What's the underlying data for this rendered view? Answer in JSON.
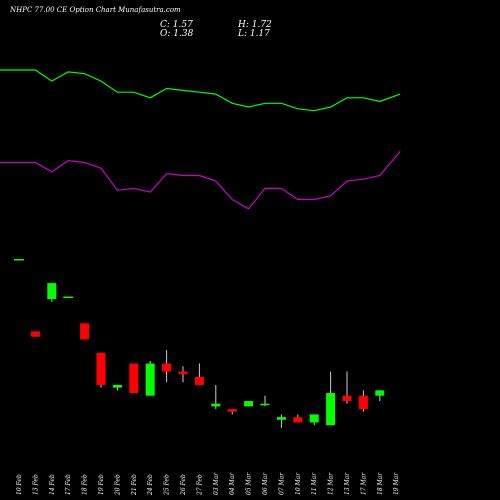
{
  "title": "NHPC 77.00  CE Option  Chart Munafasutra.com",
  "ohlc": {
    "c": "C: 1.57",
    "h": "H: 1.72",
    "o": "O: 1.38",
    "l": "L: 1.17"
  },
  "colors": {
    "up": "#00ff00",
    "down": "#ff0000",
    "line1": "#00ff00",
    "line2": "#cc00cc",
    "background": "#000000"
  },
  "chart_data": {
    "type": "candlestick",
    "title": "NHPC 77.00  CE Option  Chart Munafasutra.com",
    "categories": [
      "10 Feb",
      "13 Feb",
      "14 Feb",
      "17 Feb",
      "18 Feb",
      "19 Feb",
      "20 Feb",
      "21 Feb",
      "24 Feb",
      "25 Feb",
      "26 Feb",
      "27 Feb",
      "03 Mar",
      "04 Mar",
      "05 Mar",
      "06 Mar",
      "07 Mar",
      "10 Mar",
      "11 Mar",
      "12 Mar",
      "13 Mar",
      "17 Mar",
      "18 Mar",
      "19 Mar"
    ],
    "candles": [
      {
        "o": 2.28,
        "h": 2.28,
        "l": 2.28,
        "c": 2.28
      },
      {
        "o": 2.01,
        "h": 2.01,
        "l": 1.99,
        "c": 1.99
      },
      {
        "o": 2.13,
        "h": 2.19,
        "l": 2.12,
        "c": 2.19
      },
      {
        "o": 2.14,
        "h": 2.14,
        "l": 2.14,
        "c": 2.14
      },
      {
        "o": 2.04,
        "h": 2.04,
        "l": 1.98,
        "c": 1.98
      },
      {
        "o": 1.93,
        "h": 1.93,
        "l": 1.8,
        "c": 1.81
      },
      {
        "o": 1.8,
        "h": 1.81,
        "l": 1.79,
        "c": 1.81
      },
      {
        "o": 1.89,
        "h": 1.89,
        "l": 1.78,
        "c": 1.78
      },
      {
        "o": 1.77,
        "h": 1.9,
        "l": 1.77,
        "c": 1.89
      },
      {
        "o": 1.89,
        "h": 1.94,
        "l": 1.82,
        "c": 1.86
      },
      {
        "o": 1.86,
        "h": 1.88,
        "l": 1.82,
        "c": 1.85
      },
      {
        "o": 1.84,
        "h": 1.89,
        "l": 1.81,
        "c": 1.81
      },
      {
        "o": 1.73,
        "h": 1.81,
        "l": 1.72,
        "c": 1.74
      },
      {
        "o": 1.72,
        "h": 1.72,
        "l": 1.7,
        "c": 1.71
      },
      {
        "o": 1.73,
        "h": 1.75,
        "l": 1.73,
        "c": 1.75
      },
      {
        "o": 1.74,
        "h": 1.77,
        "l": 1.73,
        "c": 1.74
      },
      {
        "o": 1.68,
        "h": 1.7,
        "l": 1.65,
        "c": 1.69
      },
      {
        "o": 1.69,
        "h": 1.7,
        "l": 1.67,
        "c": 1.67
      },
      {
        "o": 1.67,
        "h": 1.7,
        "l": 1.66,
        "c": 1.7
      },
      {
        "o": 1.66,
        "h": 1.86,
        "l": 1.66,
        "c": 1.78
      },
      {
        "o": 1.77,
        "h": 1.86,
        "l": 1.74,
        "c": 1.75
      },
      {
        "o": 1.77,
        "h": 1.79,
        "l": 1.71,
        "c": 1.72
      },
      {
        "o": 1.77,
        "h": 1.79,
        "l": 1.75,
        "c": 1.79
      },
      {
        "o": null,
        "h": null,
        "l": null,
        "c": null
      }
    ],
    "series": [
      {
        "values": [
          1.57,
          1.57,
          1.51,
          1.56,
          1.55,
          1.51,
          1.45,
          1.45,
          1.42,
          1.47,
          1.46,
          1.45,
          1.44,
          1.39,
          1.37,
          1.39,
          1.39,
          1.36,
          1.35,
          1.37,
          1.42,
          1.42,
          1.4,
          1.44
        ]
      },
      {
        "values": [
          1.07,
          1.07,
          1.02,
          1.08,
          1.07,
          1.04,
          0.92,
          0.93,
          0.91,
          1.01,
          1.0,
          1.0,
          0.97,
          0.87,
          0.82,
          0.93,
          0.93,
          0.87,
          0.87,
          0.89,
          0.97,
          0.98,
          1.0,
          1.13
        ]
      }
    ],
    "grid": false,
    "legend": "none"
  }
}
